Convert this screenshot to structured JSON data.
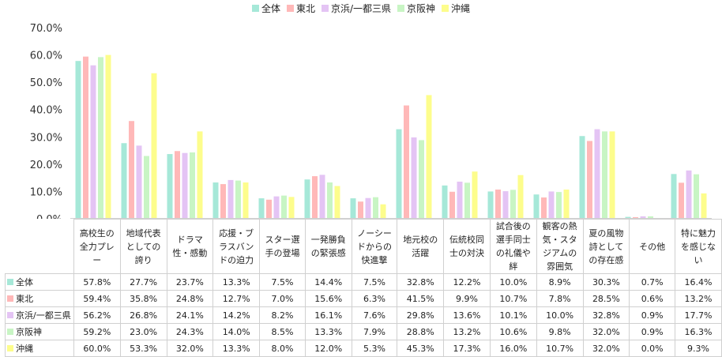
{
  "chart_data": {
    "type": "bar",
    "categories": [
      "高校生の全力プレー",
      "地域代表としての誇り",
      "ドラマ性・感動",
      "応援・ブラスバンドの迫力",
      "スター選手の登場",
      "一発勝負の緊張感",
      "ノーシードからの快進撃",
      "地元校の活躍",
      "伝統校同士の対決",
      "試合後の選手同士の礼儀や絆",
      "観客の熱気・スタジアムの雰囲気",
      "夏の風物詩としての存在感",
      "その他",
      "特に魅力を感じない"
    ],
    "series": [
      {
        "name": "全体",
        "color": "#a6e8d8",
        "values": [
          57.8,
          27.7,
          23.7,
          13.3,
          7.5,
          14.4,
          7.5,
          32.8,
          12.2,
          10.0,
          8.9,
          30.3,
          0.7,
          16.4
        ],
        "labels": [
          "57.8%",
          "27.7%",
          "23.7%",
          "13.3%",
          "7.5%",
          "14.4%",
          "7.5%",
          "32.8%",
          "12.2%",
          "10.0%",
          "8.9%",
          "30.3%",
          "0.7%",
          "16.4%"
        ]
      },
      {
        "name": "東北",
        "color": "#ffb8b8",
        "values": [
          59.4,
          35.8,
          24.8,
          12.7,
          7.0,
          15.6,
          6.3,
          41.5,
          9.9,
          10.7,
          7.8,
          28.5,
          0.6,
          13.2
        ],
        "labels": [
          "59.4%",
          "35.8%",
          "24.8%",
          "12.7%",
          "7.0%",
          "15.6%",
          "6.3%",
          "41.5%",
          "9.9%",
          "10.7%",
          "7.8%",
          "28.5%",
          "0.6%",
          "13.2%"
        ]
      },
      {
        "name": "京浜/一都三県",
        "color": "#e4c4f4",
        "values": [
          56.2,
          26.8,
          24.1,
          14.2,
          8.2,
          16.1,
          7.6,
          29.8,
          13.6,
          10.1,
          10.0,
          32.8,
          0.9,
          17.7
        ],
        "labels": [
          "56.2%",
          "26.8%",
          "24.1%",
          "14.2%",
          "8.2%",
          "16.1%",
          "7.6%",
          "29.8%",
          "13.6%",
          "10.1%",
          "10.0%",
          "32.8%",
          "0.9%",
          "17.7%"
        ]
      },
      {
        "name": "京阪神",
        "color": "#c8f5c4",
        "values": [
          59.2,
          23.0,
          24.3,
          14.0,
          8.5,
          13.3,
          7.9,
          28.8,
          13.2,
          10.6,
          9.8,
          32.0,
          0.9,
          16.3
        ],
        "labels": [
          "59.2%",
          "23.0%",
          "24.3%",
          "14.0%",
          "8.5%",
          "13.3%",
          "7.9%",
          "28.8%",
          "13.2%",
          "10.6%",
          "9.8%",
          "32.0%",
          "0.9%",
          "16.3%"
        ]
      },
      {
        "name": "沖縄",
        "color": "#fdfd8c",
        "values": [
          60.0,
          53.3,
          32.0,
          13.3,
          8.0,
          12.0,
          5.3,
          45.3,
          17.3,
          16.0,
          10.7,
          32.0,
          0.0,
          9.3
        ],
        "labels": [
          "60.0%",
          "53.3%",
          "32.0%",
          "13.3%",
          "8.0%",
          "12.0%",
          "5.3%",
          "45.3%",
          "17.3%",
          "16.0%",
          "10.7%",
          "32.0%",
          "0.0%",
          "9.3%"
        ]
      }
    ],
    "yticks": [
      "0.0%",
      "10.0%",
      "20.0%",
      "30.0%",
      "40.0%",
      "50.0%",
      "60.0%",
      "70.0%"
    ],
    "ylim": [
      0,
      70
    ],
    "legend_position": "top",
    "data_table": true,
    "grid": false
  }
}
